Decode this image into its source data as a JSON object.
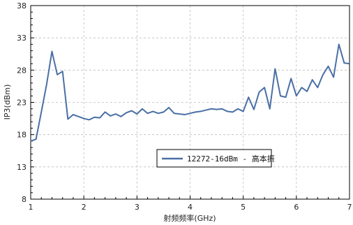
{
  "chart_data": {
    "type": "line",
    "xlabel": "射频频率(GHz)",
    "ylabel": "IP3(dBm)",
    "xlim": [
      1,
      7
    ],
    "ylim": [
      8,
      38
    ],
    "xticks": [
      1,
      2,
      3,
      4,
      5,
      6,
      7
    ],
    "yticks": [
      8,
      13,
      18,
      23,
      28,
      33,
      38
    ],
    "grid": true,
    "legend_position": "lower-center",
    "colors": {
      "series": "#4a6fa5",
      "grid": "#bdbdbd",
      "axis": "#000000"
    },
    "series": [
      {
        "name": "12272-16dBm - 高本振",
        "x": [
          1.0,
          1.1,
          1.2,
          1.3,
          1.4,
          1.5,
          1.6,
          1.7,
          1.8,
          1.9,
          2.0,
          2.1,
          2.2,
          2.3,
          2.4,
          2.5,
          2.6,
          2.7,
          2.8,
          2.9,
          3.0,
          3.1,
          3.2,
          3.3,
          3.4,
          3.5,
          3.6,
          3.7,
          3.8,
          3.9,
          4.0,
          4.1,
          4.2,
          4.3,
          4.4,
          4.5,
          4.6,
          4.7,
          4.8,
          4.9,
          5.0,
          5.1,
          5.2,
          5.3,
          5.4,
          5.5,
          5.6,
          5.7,
          5.8,
          5.9,
          6.0,
          6.1,
          6.2,
          6.3,
          6.4,
          6.5,
          6.6,
          6.7,
          6.8,
          6.9,
          7.0
        ],
        "y": [
          17.0,
          17.3,
          21.5,
          25.8,
          30.9,
          27.3,
          27.8,
          20.4,
          21.1,
          20.8,
          20.5,
          20.3,
          20.7,
          20.6,
          21.5,
          20.9,
          21.2,
          20.8,
          21.4,
          21.7,
          21.2,
          22.0,
          21.3,
          21.6,
          21.3,
          21.5,
          22.2,
          21.3,
          21.2,
          21.1,
          21.3,
          21.5,
          21.6,
          21.8,
          22.0,
          21.9,
          22.0,
          21.6,
          21.5,
          22.0,
          21.6,
          23.8,
          21.9,
          24.6,
          25.3,
          22.0,
          28.2,
          24.0,
          23.8,
          26.7,
          24.0,
          25.3,
          24.7,
          26.5,
          25.3,
          27.3,
          28.6,
          26.9,
          32.0,
          29.1,
          29.0
        ]
      }
    ]
  }
}
